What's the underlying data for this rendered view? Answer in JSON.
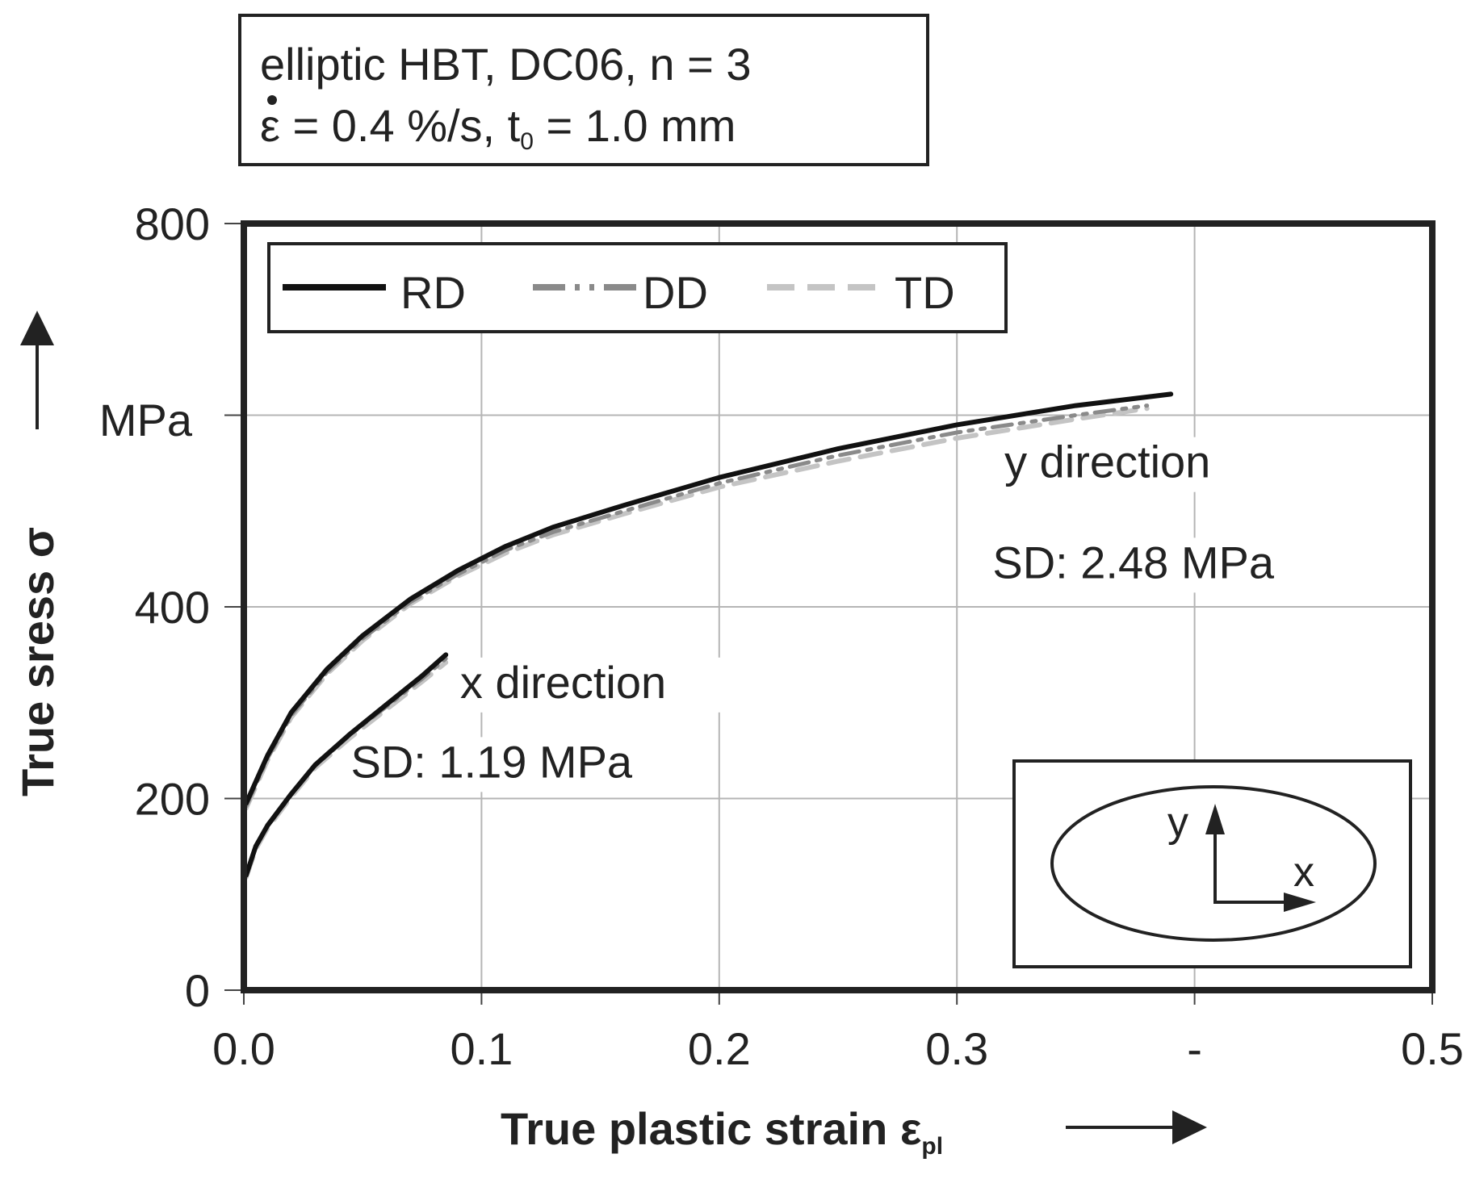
{
  "info_box": {
    "line1": "elliptic HBT, DC06, n = 3",
    "line2_eps": "ε",
    "line2_rest": " = 0.4 %/s, t",
    "line2_sub": "0",
    "line2_end": " = 1.0 mm"
  },
  "chart_data": {
    "type": "line",
    "xlabel": "True plastic strain ε",
    "xlabel_sub": "pl",
    "ylabel": "True sress σ",
    "yunit": "MPa",
    "xlim": [
      0,
      0.5
    ],
    "ylim": [
      0,
      800
    ],
    "xticks": [
      0,
      0.1,
      0.2,
      0.3,
      0.4,
      0.5
    ],
    "xtick_labels": [
      "0.0",
      "0.1",
      "0.2",
      "0.3",
      "-",
      "0.5"
    ],
    "yticks": [
      0,
      200,
      400,
      800
    ],
    "ytick_labels": [
      "0",
      "200",
      "400",
      "800"
    ],
    "grid": true,
    "legend_position": "top-left",
    "legend": [
      {
        "name": "RD",
        "color": "#111111",
        "dash": "solid"
      },
      {
        "name": "DD",
        "color": "#8a8a8a",
        "dash": "dash-dot-dot"
      },
      {
        "name": "TD",
        "color": "#c4c4c4",
        "dash": "dashed"
      }
    ],
    "annotations": [
      {
        "text": "y direction",
        "x": 0.32,
        "y": 535
      },
      {
        "text": "SD: 2.48 MPa",
        "x": 0.315,
        "y": 430
      },
      {
        "text": "x direction",
        "x": 0.091,
        "y": 305
      },
      {
        "text": "SD: 1.19 MPa",
        "x": 0.045,
        "y": 222
      }
    ],
    "series": [
      {
        "name": "RD",
        "group": "y direction",
        "x": [
          0.001,
          0.01,
          0.02,
          0.035,
          0.05,
          0.07,
          0.09,
          0.11,
          0.13,
          0.16,
          0.2,
          0.25,
          0.3,
          0.35,
          0.39
        ],
        "y": [
          195,
          245,
          290,
          335,
          370,
          408,
          438,
          463,
          483,
          506,
          535,
          565,
          590,
          610,
          622
        ]
      },
      {
        "name": "DD",
        "group": "y direction",
        "x": [
          0.001,
          0.01,
          0.02,
          0.035,
          0.05,
          0.07,
          0.09,
          0.11,
          0.13,
          0.16,
          0.2,
          0.25,
          0.3,
          0.35,
          0.38
        ],
        "y": [
          192,
          242,
          287,
          332,
          367,
          405,
          434,
          459,
          478,
          500,
          529,
          558,
          582,
          600,
          610
        ]
      },
      {
        "name": "TD",
        "group": "y direction",
        "x": [
          0.001,
          0.01,
          0.02,
          0.035,
          0.05,
          0.07,
          0.09,
          0.11,
          0.13,
          0.16,
          0.2,
          0.25,
          0.3,
          0.35,
          0.38
        ],
        "y": [
          190,
          240,
          285,
          330,
          365,
          403,
          432,
          456,
          475,
          497,
          525,
          552,
          576,
          596,
          607
        ]
      },
      {
        "name": "RD",
        "group": "x direction",
        "x": [
          0.001,
          0.005,
          0.01,
          0.02,
          0.03,
          0.045,
          0.06,
          0.075,
          0.085
        ],
        "y": [
          120,
          150,
          172,
          205,
          235,
          268,
          298,
          328,
          350
        ]
      },
      {
        "name": "DD",
        "group": "x direction",
        "x": [
          0.001,
          0.005,
          0.01,
          0.02,
          0.03,
          0.045,
          0.06,
          0.075,
          0.085
        ],
        "y": [
          119,
          149,
          171,
          204,
          234,
          267,
          296,
          325,
          346
        ]
      },
      {
        "name": "TD",
        "group": "x direction",
        "x": [
          0.001,
          0.005,
          0.01,
          0.02,
          0.03,
          0.045,
          0.06,
          0.075,
          0.085
        ],
        "y": [
          118,
          147,
          169,
          202,
          232,
          264,
          293,
          322,
          342
        ]
      }
    ]
  },
  "inset": {
    "y_label": "y",
    "x_label": "x"
  }
}
